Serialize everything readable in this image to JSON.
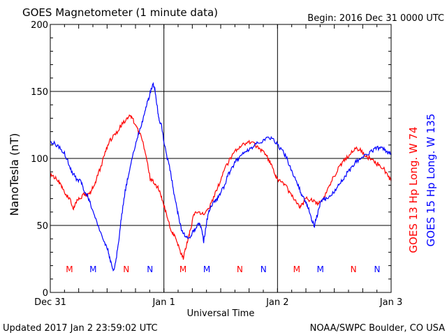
{
  "header": {
    "title": "GOES Magnetometer (1 minute data)",
    "begin": "Begin:  2016 Dec 31 0000 UTC"
  },
  "footer": {
    "updated": "Updated 2017 Jan  2 23:59:02 UTC",
    "source": "NOAA/SWPC Boulder, CO USA"
  },
  "colors": {
    "goes13": "#ff0000",
    "goes15": "#0000ff",
    "grid": "#000000"
  },
  "chart_data": {
    "type": "line",
    "xlabel": "Universal Time",
    "ylabel": "NanoTesla (nT)",
    "xlim": [
      0,
      72
    ],
    "ylim": [
      0,
      200
    ],
    "grid": true,
    "x_ticks": [
      {
        "x": 0,
        "label": "Dec 31"
      },
      {
        "x": 24,
        "label": "Jan 1"
      },
      {
        "x": 48,
        "label": "Jan 2"
      },
      {
        "x": 72,
        "label": "Jan 3"
      }
    ],
    "y_ticks": [
      0,
      50,
      100,
      150,
      200
    ],
    "legend_position": "right, vertical",
    "series": [
      {
        "name": "GOES 13 Hp  Long. W 74",
        "color": "#ff0000",
        "points": [
          [
            0,
            87
          ],
          [
            1,
            86
          ],
          [
            1.8,
            83
          ],
          [
            2.5,
            79
          ],
          [
            3.5,
            72
          ],
          [
            4.3,
            69
          ],
          [
            4.9,
            62
          ],
          [
            5.5,
            68
          ],
          [
            6.3,
            70
          ],
          [
            7.2,
            74
          ],
          [
            7.8,
            72
          ],
          [
            8.3,
            73
          ],
          [
            9,
            79
          ],
          [
            9.6,
            83
          ],
          [
            10.5,
            92
          ],
          [
            11.6,
            104
          ],
          [
            12.4,
            113
          ],
          [
            13.3,
            116
          ],
          [
            14.3,
            121
          ],
          [
            15,
            125
          ],
          [
            16,
            129
          ],
          [
            16.7,
            131
          ],
          [
            17.3,
            130
          ],
          [
            18,
            125
          ],
          [
            18.7,
            120
          ],
          [
            19.6,
            112
          ],
          [
            20.3,
            100
          ],
          [
            21.1,
            85
          ],
          [
            21.8,
            82
          ],
          [
            22.6,
            79
          ],
          [
            23.4,
            72
          ],
          [
            24,
            65
          ],
          [
            24.8,
            55
          ],
          [
            25.4,
            47
          ],
          [
            26,
            43
          ],
          [
            26.6,
            40
          ],
          [
            27.1,
            35
          ],
          [
            27.6,
            29
          ],
          [
            28.1,
            26
          ],
          [
            28.7,
            34
          ],
          [
            29.2,
            41
          ],
          [
            29.7,
            48
          ],
          [
            30.3,
            58
          ],
          [
            31.1,
            60
          ],
          [
            32,
            58
          ],
          [
            33,
            60
          ],
          [
            34,
            66
          ],
          [
            35,
            75
          ],
          [
            36,
            84
          ],
          [
            37,
            93
          ],
          [
            38,
            100
          ],
          [
            39,
            105
          ],
          [
            40,
            108
          ],
          [
            41,
            111
          ],
          [
            42,
            112
          ],
          [
            43,
            111
          ],
          [
            44,
            108
          ],
          [
            45,
            105
          ],
          [
            46,
            100
          ],
          [
            46.8,
            94
          ],
          [
            47.5,
            88
          ],
          [
            48,
            84
          ],
          [
            49,
            82
          ],
          [
            50,
            78
          ],
          [
            51,
            72
          ],
          [
            52,
            67
          ],
          [
            52.7,
            63
          ],
          [
            53.3,
            66
          ],
          [
            54,
            70
          ],
          [
            55,
            69
          ],
          [
            56,
            67
          ],
          [
            56.7,
            66
          ],
          [
            57.5,
            70
          ],
          [
            58.5,
            76
          ],
          [
            59.5,
            84
          ],
          [
            60.5,
            90
          ],
          [
            61.5,
            96
          ],
          [
            62.5,
            100
          ],
          [
            63.5,
            104
          ],
          [
            64.5,
            107
          ],
          [
            65.5,
            106
          ],
          [
            66.5,
            102
          ],
          [
            67.5,
            100
          ],
          [
            68.5,
            97
          ],
          [
            69.5,
            95
          ],
          [
            70.5,
            92
          ],
          [
            71.3,
            87
          ],
          [
            72,
            83
          ]
        ]
      },
      {
        "name": "GOES 15 Hp  Long. W 135",
        "color": "#0000ff",
        "points": [
          [
            0,
            112
          ],
          [
            1,
            111
          ],
          [
            2,
            108
          ],
          [
            3,
            104
          ],
          [
            3.8,
            97
          ],
          [
            4.6,
            90
          ],
          [
            5.5,
            85
          ],
          [
            6.4,
            83
          ],
          [
            7,
            77
          ],
          [
            7.8,
            73
          ],
          [
            8.4,
            67
          ],
          [
            9.2,
            58
          ],
          [
            10,
            50
          ],
          [
            10.8,
            42
          ],
          [
            11.6,
            36
          ],
          [
            12.3,
            30
          ],
          [
            12.8,
            22
          ],
          [
            13.3,
            15
          ],
          [
            13.9,
            25
          ],
          [
            14.5,
            40
          ],
          [
            15.1,
            58
          ],
          [
            15.8,
            75
          ],
          [
            16.5,
            88
          ],
          [
            17.3,
            100
          ],
          [
            18,
            110
          ],
          [
            18.7,
            119
          ],
          [
            19.4,
            127
          ],
          [
            20,
            135
          ],
          [
            20.6,
            143
          ],
          [
            21.2,
            150
          ],
          [
            21.7,
            155
          ],
          [
            22.1,
            152
          ],
          [
            22.6,
            138
          ],
          [
            23,
            128
          ],
          [
            23.5,
            125
          ],
          [
            24,
            112
          ],
          [
            24.7,
            100
          ],
          [
            25.4,
            90
          ],
          [
            26.1,
            75
          ],
          [
            26.8,
            62
          ],
          [
            27.3,
            52
          ],
          [
            27.9,
            45
          ],
          [
            28.5,
            42
          ],
          [
            29.3,
            40
          ],
          [
            30.1,
            45
          ],
          [
            30.8,
            48
          ],
          [
            31.5,
            52
          ],
          [
            32,
            47
          ],
          [
            32.4,
            38
          ],
          [
            33,
            52
          ],
          [
            33.6,
            62
          ],
          [
            34.5,
            67
          ],
          [
            35.3,
            70
          ],
          [
            36,
            74
          ],
          [
            36.8,
            80
          ],
          [
            37.6,
            88
          ],
          [
            38.4,
            93
          ],
          [
            39.2,
            98
          ],
          [
            40,
            101
          ],
          [
            41,
            104
          ],
          [
            42,
            106
          ],
          [
            43,
            109
          ],
          [
            44,
            112
          ],
          [
            45,
            113
          ],
          [
            46,
            116
          ],
          [
            47,
            114
          ],
          [
            48,
            110
          ],
          [
            49,
            106
          ],
          [
            50,
            100
          ],
          [
            51,
            90
          ],
          [
            52,
            82
          ],
          [
            52.8,
            76
          ],
          [
            53.5,
            70
          ],
          [
            54.2,
            66
          ],
          [
            54.8,
            60
          ],
          [
            55.3,
            53
          ],
          [
            55.8,
            50
          ],
          [
            56.4,
            58
          ],
          [
            57,
            66
          ],
          [
            57.8,
            70
          ],
          [
            58.5,
            70
          ],
          [
            59.5,
            73
          ],
          [
            60.5,
            78
          ],
          [
            61.5,
            83
          ],
          [
            62.5,
            88
          ],
          [
            63.5,
            92
          ],
          [
            64.5,
            97
          ],
          [
            65.5,
            100
          ],
          [
            66.5,
            102
          ],
          [
            67.5,
            104
          ],
          [
            68.5,
            107
          ],
          [
            69.5,
            108
          ],
          [
            70.5,
            107
          ],
          [
            71.3,
            104
          ],
          [
            72,
            103
          ]
        ]
      }
    ],
    "markers": [
      {
        "x": 7,
        "label": "M",
        "color": "#ff0000"
      },
      {
        "x": 12,
        "label": "M",
        "color": "#0000ff"
      },
      {
        "x": 19,
        "label": "N",
        "color": "#ff0000"
      },
      {
        "x": 24,
        "label": "N",
        "color": "#0000ff"
      },
      {
        "x": 31,
        "label": "M",
        "color": "#ff0000"
      },
      {
        "x": 36,
        "label": "M",
        "color": "#0000ff"
      },
      {
        "x": 43,
        "label": "N",
        "color": "#ff0000"
      },
      {
        "x": 48,
        "label": "N",
        "color": "#0000ff"
      },
      {
        "x": 55,
        "label": "M",
        "color": "#ff0000"
      },
      {
        "x": 60,
        "label": "M",
        "color": "#0000ff"
      },
      {
        "x": 67,
        "label": "N",
        "color": "#ff0000"
      },
      {
        "x": 72,
        "label": "N",
        "color": "#0000ff"
      }
    ]
  }
}
